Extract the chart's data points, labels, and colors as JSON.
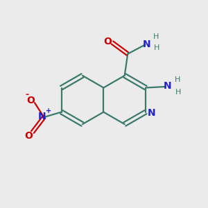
{
  "bg_color": "#ebebeb",
  "bond_color": "#3a7a6a",
  "n_color": "#2020cc",
  "o_color": "#cc0000",
  "h_color": "#3a7a6a",
  "figsize": [
    3.0,
    3.0
  ],
  "dpi": 100,
  "xlim": [
    0,
    10
  ],
  "ylim": [
    0,
    10
  ]
}
